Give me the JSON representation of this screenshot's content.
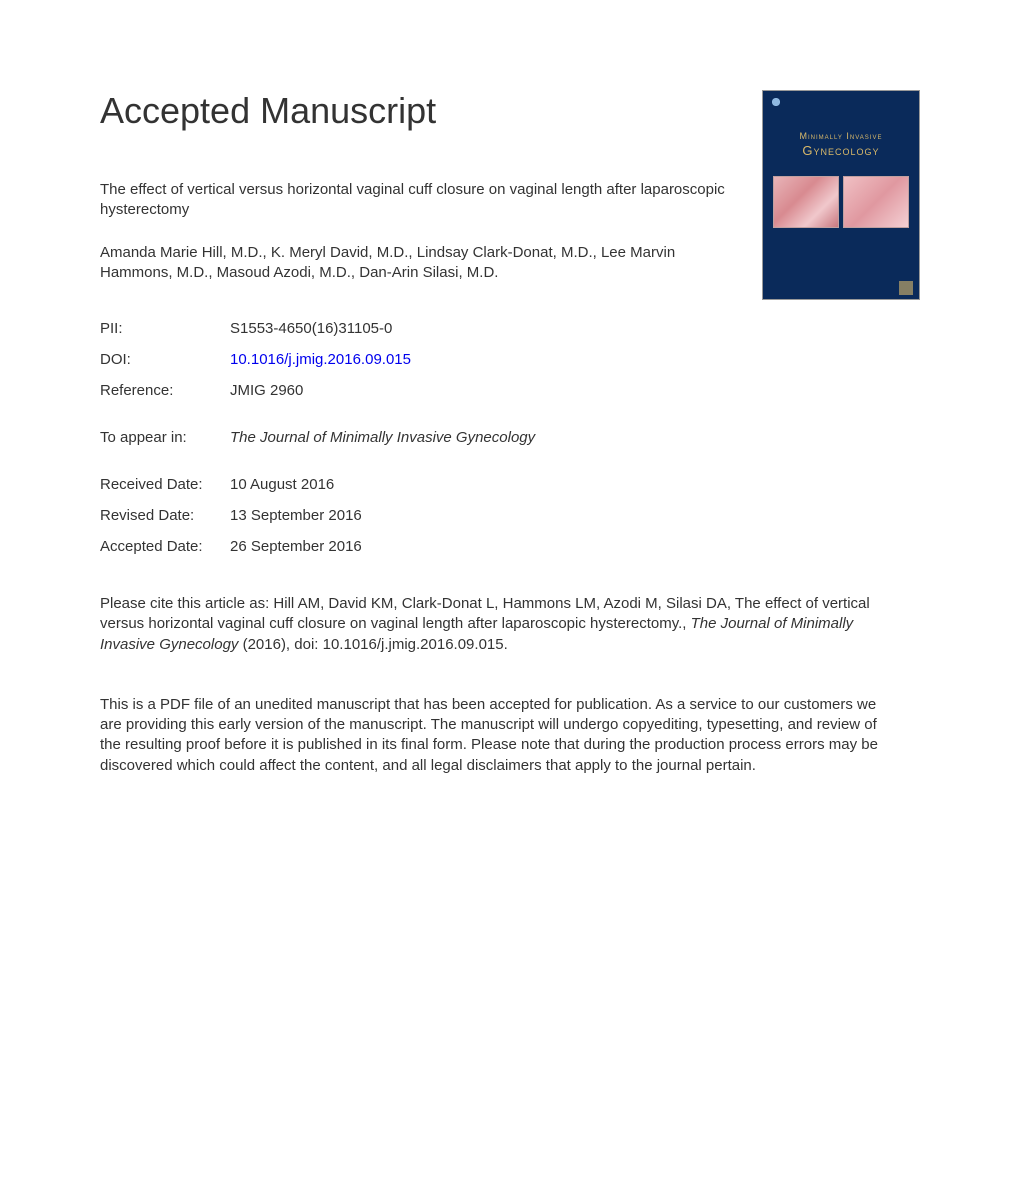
{
  "heading": "Accepted Manuscript",
  "article_title": "The effect of vertical versus horizontal vaginal cuff closure on vaginal length after laparoscopic hysterectomy",
  "authors": "Amanda Marie Hill, M.D., K. Meryl David, M.D., Lindsay Clark-Donat, M.D., Lee Marvin Hammons, M.D., Masoud Azodi, M.D., Dan-Arin Silasi, M.D.",
  "cover": {
    "line1": "Minimally Invasive",
    "line2": "Gynecology"
  },
  "meta": {
    "pii_label": "PII:",
    "pii_value": "S1553-4650(16)31105-0",
    "doi_label": "DOI:",
    "doi_value": "10.1016/j.jmig.2016.09.015",
    "ref_label": "Reference:",
    "ref_value": "JMIG 2960",
    "appear_label": "To appear in:",
    "appear_value": "The Journal of Minimally Invasive Gynecology",
    "received_label": "Received Date:",
    "received_value": "10 August 2016",
    "revised_label": "Revised Date:",
    "revised_value": "13 September 2016",
    "accepted_label": "Accepted Date:",
    "accepted_value": "26 September 2016"
  },
  "citation": {
    "prefix": "Please cite this article as: Hill AM, David KM, Clark-Donat L, Hammons LM, Azodi M, Silasi DA, The effect of vertical versus horizontal vaginal cuff closure on vaginal length after laparoscopic hysterectomy., ",
    "journal": "The Journal of Minimally Invasive Gynecology",
    "suffix": " (2016), doi: 10.1016/j.jmig.2016.09.015."
  },
  "disclaimer": "This is a PDF file of an unedited manuscript that has been accepted for publication. As a service to our customers we are providing this early version of the manuscript. The manuscript will undergo copyediting, typesetting, and review of the resulting proof before it is published in its final form. Please note that during the production process errors may be discovered which could affect the content, and all legal disclaimers that apply to the journal pertain.",
  "colors": {
    "text": "#333333",
    "link": "#0000ee",
    "cover_bg": "#0a2a5a",
    "cover_accent": "#d9b96a",
    "background": "#ffffff"
  },
  "typography": {
    "heading_fontsize": 36,
    "body_fontsize": 15,
    "font_family": "Arial"
  }
}
